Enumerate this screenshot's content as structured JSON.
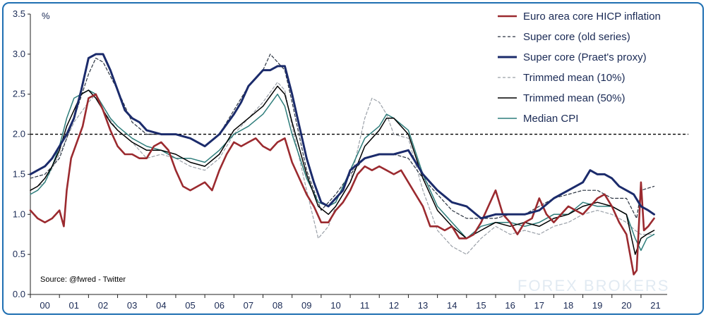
{
  "chart_data": {
    "type": "line",
    "title": "",
    "ylabel": "%",
    "ylim": [
      0.0,
      3.5
    ],
    "yticks": [
      "0.0",
      "0.5",
      "1.0",
      "1.5",
      "2.0",
      "2.5",
      "3.0",
      "3.5"
    ],
    "xlim": [
      2000.0,
      2021.9
    ],
    "xticks": [
      "00",
      "01",
      "02",
      "03",
      "04",
      "05",
      "06",
      "07",
      "08",
      "09",
      "10",
      "11",
      "12",
      "13",
      "14",
      "15",
      "16",
      "17",
      "18",
      "19",
      "20",
      "21"
    ],
    "reference_line": 2.0,
    "grid": false,
    "legend_position": "top-right",
    "source": "Source: @fwred - Twitter",
    "watermark": "FOREX BROKERS",
    "series": [
      {
        "name": "Euro area core HICP inflation",
        "color": "#9b2a2f",
        "style": "solid",
        "width": 2.6,
        "x": [
          2000.0,
          2000.25,
          2000.5,
          2000.75,
          2001.0,
          2001.15,
          2001.25,
          2001.4,
          2001.6,
          2001.8,
          2002.0,
          2002.25,
          2002.5,
          2002.75,
          2003.0,
          2003.25,
          2003.5,
          2003.75,
          2004.0,
          2004.25,
          2004.5,
          2004.75,
          2005.0,
          2005.25,
          2005.5,
          2005.75,
          2006.0,
          2006.25,
          2006.5,
          2006.75,
          2007.0,
          2007.25,
          2007.5,
          2007.75,
          2008.0,
          2008.25,
          2008.5,
          2008.75,
          2009.0,
          2009.25,
          2009.5,
          2009.75,
          2010.0,
          2010.25,
          2010.5,
          2010.75,
          2011.0,
          2011.25,
          2011.5,
          2011.75,
          2012.0,
          2012.25,
          2012.5,
          2012.75,
          2013.0,
          2013.25,
          2013.5,
          2013.75,
          2014.0,
          2014.25,
          2014.5,
          2014.75,
          2015.0,
          2015.25,
          2015.5,
          2015.75,
          2016.0,
          2016.25,
          2016.5,
          2016.75,
          2017.0,
          2017.25,
          2017.5,
          2017.75,
          2018.0,
          2018.25,
          2018.5,
          2018.75,
          2019.0,
          2019.25,
          2019.5,
          2019.75,
          2020.0,
          2020.25,
          2020.5,
          2020.75,
          2020.85,
          2021.0,
          2021.1,
          2021.25,
          2021.45
        ],
        "y": [
          1.05,
          0.95,
          0.9,
          0.95,
          1.05,
          0.85,
          1.3,
          1.7,
          1.9,
          2.1,
          2.45,
          2.5,
          2.3,
          2.05,
          1.85,
          1.75,
          1.75,
          1.7,
          1.7,
          1.85,
          1.9,
          1.8,
          1.55,
          1.35,
          1.3,
          1.35,
          1.4,
          1.3,
          1.55,
          1.75,
          1.9,
          1.85,
          1.9,
          1.95,
          1.85,
          1.8,
          1.9,
          1.95,
          1.65,
          1.45,
          1.25,
          1.1,
          0.9,
          0.9,
          1.05,
          1.15,
          1.3,
          1.5,
          1.6,
          1.55,
          1.6,
          1.55,
          1.5,
          1.55,
          1.4,
          1.25,
          1.1,
          0.85,
          0.85,
          0.8,
          0.85,
          0.7,
          0.7,
          0.75,
          0.9,
          1.1,
          1.3,
          1.0,
          0.9,
          0.75,
          0.9,
          0.95,
          1.2,
          1.0,
          0.9,
          1.0,
          1.1,
          1.05,
          1.0,
          1.1,
          1.2,
          1.25,
          1.1,
          0.9,
          0.75,
          0.25,
          0.3,
          1.4,
          0.8,
          0.85,
          0.95
        ]
      },
      {
        "name": "Super core (old series)",
        "color": "#2a3340",
        "style": "dashed",
        "width": 1.2,
        "x": [
          2000.0,
          2000.5,
          2001.0,
          2001.5,
          2002.0,
          2002.25,
          2002.5,
          2003.0,
          2003.5,
          2004.0,
          2004.5,
          2005.0,
          2005.5,
          2006.0,
          2006.5,
          2007.0,
          2007.5,
          2008.0,
          2008.25,
          2008.5,
          2008.75,
          2009.0,
          2009.5,
          2010.0,
          2010.5,
          2011.0,
          2011.5,
          2012.0,
          2012.5,
          2013.0,
          2013.5,
          2014.0,
          2014.5,
          2015.0,
          2015.5,
          2016.0,
          2016.5,
          2017.0,
          2017.5,
          2018.0,
          2018.5,
          2019.0,
          2019.5,
          2020.0,
          2020.5,
          2020.85,
          2021.0,
          2021.45
        ],
        "y": [
          1.45,
          1.5,
          1.7,
          2.2,
          2.75,
          2.95,
          2.9,
          2.55,
          2.15,
          2.0,
          2.0,
          2.0,
          1.95,
          1.85,
          2.0,
          2.3,
          2.6,
          2.8,
          3.0,
          2.9,
          2.8,
          2.4,
          1.55,
          1.05,
          1.25,
          1.5,
          1.7,
          1.75,
          1.75,
          1.7,
          1.45,
          1.25,
          1.05,
          0.95,
          0.95,
          0.95,
          1.0,
          1.0,
          1.1,
          1.2,
          1.25,
          1.3,
          1.3,
          1.2,
          1.2,
          0.95,
          1.3,
          1.35
        ]
      },
      {
        "name": "Super core (Praet's proxy)",
        "color": "#1b2b6b",
        "style": "solid",
        "width": 3.0,
        "x": [
          2000.0,
          2000.25,
          2000.5,
          2000.75,
          2001.0,
          2001.25,
          2001.5,
          2001.75,
          2002.0,
          2002.25,
          2002.5,
          2002.75,
          2003.0,
          2003.25,
          2003.5,
          2003.75,
          2004.0,
          2004.5,
          2005.0,
          2005.5,
          2006.0,
          2006.5,
          2007.0,
          2007.25,
          2007.5,
          2007.75,
          2008.0,
          2008.25,
          2008.5,
          2008.75,
          2009.0,
          2009.25,
          2009.5,
          2009.75,
          2010.0,
          2010.25,
          2010.5,
          2010.75,
          2011.0,
          2011.5,
          2012.0,
          2012.5,
          2013.0,
          2013.5,
          2014.0,
          2014.5,
          2015.0,
          2015.5,
          2016.0,
          2016.5,
          2017.0,
          2017.5,
          2018.0,
          2018.5,
          2019.0,
          2019.25,
          2019.5,
          2019.75,
          2020.0,
          2020.25,
          2020.5,
          2020.75,
          2021.0,
          2021.25,
          2021.45
        ],
        "y": [
          1.5,
          1.55,
          1.6,
          1.7,
          1.85,
          2.0,
          2.2,
          2.55,
          2.95,
          3.0,
          3.0,
          2.8,
          2.55,
          2.3,
          2.2,
          2.15,
          2.05,
          2.0,
          2.0,
          1.95,
          1.85,
          2.0,
          2.25,
          2.4,
          2.6,
          2.7,
          2.8,
          2.8,
          2.85,
          2.85,
          2.5,
          2.1,
          1.7,
          1.4,
          1.15,
          1.1,
          1.2,
          1.3,
          1.55,
          1.7,
          1.75,
          1.75,
          1.8,
          1.5,
          1.3,
          1.15,
          1.1,
          0.95,
          1.0,
          1.0,
          1.0,
          1.05,
          1.2,
          1.3,
          1.4,
          1.55,
          1.5,
          1.5,
          1.45,
          1.35,
          1.3,
          1.25,
          1.1,
          1.05,
          1.0
        ]
      },
      {
        "name": "Trimmed mean (10%)",
        "color": "#9aa0a8",
        "style": "dashed",
        "width": 1.2,
        "x": [
          2000.0,
          2000.5,
          2001.0,
          2001.5,
          2002.0,
          2002.25,
          2002.5,
          2003.0,
          2003.5,
          2004.0,
          2004.5,
          2005.0,
          2005.5,
          2006.0,
          2006.5,
          2007.0,
          2007.5,
          2008.0,
          2008.5,
          2008.75,
          2009.0,
          2009.5,
          2009.9,
          2010.25,
          2010.5,
          2011.0,
          2011.5,
          2011.75,
          2012.0,
          2012.25,
          2012.5,
          2013.0,
          2013.5,
          2014.0,
          2014.5,
          2015.0,
          2015.5,
          2016.0,
          2016.5,
          2017.0,
          2017.5,
          2018.0,
          2018.5,
          2019.0,
          2019.5,
          2020.0,
          2020.5,
          2020.8,
          2021.0,
          2021.45
        ],
        "y": [
          1.3,
          1.4,
          1.75,
          2.15,
          2.4,
          2.5,
          2.3,
          2.05,
          1.9,
          1.7,
          1.75,
          1.7,
          1.6,
          1.55,
          1.7,
          2.0,
          2.2,
          2.4,
          2.65,
          2.55,
          2.1,
          1.3,
          0.7,
          0.85,
          1.1,
          1.4,
          2.2,
          2.45,
          2.4,
          2.25,
          2.0,
          1.95,
          1.3,
          0.8,
          0.6,
          0.5,
          0.7,
          0.85,
          0.75,
          0.8,
          0.75,
          0.85,
          0.9,
          1.0,
          1.05,
          1.0,
          0.9,
          0.8,
          0.75,
          0.75
        ]
      },
      {
        "name": "Trimmed mean (50%)",
        "color": "#000000",
        "style": "solid",
        "width": 1.5,
        "x": [
          2000.0,
          2000.25,
          2000.5,
          2000.75,
          2001.0,
          2001.25,
          2001.5,
          2001.75,
          2002.0,
          2002.25,
          2002.5,
          2002.75,
          2003.0,
          2003.5,
          2004.0,
          2004.5,
          2005.0,
          2005.5,
          2006.0,
          2006.5,
          2007.0,
          2007.5,
          2008.0,
          2008.5,
          2008.75,
          2009.0,
          2009.5,
          2009.9,
          2010.25,
          2010.5,
          2011.0,
          2011.5,
          2012.0,
          2012.25,
          2012.5,
          2013.0,
          2013.5,
          2014.0,
          2014.5,
          2015.0,
          2015.5,
          2016.0,
          2016.5,
          2017.0,
          2017.5,
          2018.0,
          2018.5,
          2019.0,
          2019.5,
          2020.0,
          2020.5,
          2020.8,
          2021.0,
          2021.2,
          2021.45
        ],
        "y": [
          1.3,
          1.35,
          1.45,
          1.6,
          1.8,
          2.1,
          2.3,
          2.5,
          2.55,
          2.45,
          2.3,
          2.15,
          2.05,
          1.9,
          1.8,
          1.8,
          1.75,
          1.65,
          1.6,
          1.75,
          2.05,
          2.2,
          2.35,
          2.6,
          2.5,
          2.15,
          1.5,
          1.1,
          1.0,
          1.1,
          1.4,
          1.85,
          2.05,
          2.2,
          2.2,
          2.0,
          1.45,
          1.05,
          0.85,
          0.7,
          0.8,
          0.9,
          0.85,
          0.9,
          0.85,
          0.95,
          1.0,
          1.1,
          1.15,
          1.1,
          1.0,
          0.5,
          0.7,
          0.75,
          0.8
        ]
      },
      {
        "name": "Median CPI",
        "color": "#2e7d7b",
        "style": "solid",
        "width": 1.5,
        "x": [
          2000.0,
          2000.25,
          2000.5,
          2000.75,
          2001.0,
          2001.25,
          2001.5,
          2001.75,
          2002.0,
          2002.25,
          2002.5,
          2002.75,
          2003.0,
          2003.5,
          2004.0,
          2004.5,
          2005.0,
          2005.5,
          2006.0,
          2006.5,
          2007.0,
          2007.5,
          2008.0,
          2008.5,
          2008.75,
          2009.0,
          2009.5,
          2009.9,
          2010.25,
          2010.5,
          2011.0,
          2011.5,
          2012.0,
          2012.25,
          2012.5,
          2013.0,
          2013.5,
          2014.0,
          2014.5,
          2015.0,
          2015.5,
          2016.0,
          2016.5,
          2017.0,
          2017.5,
          2018.0,
          2018.5,
          2019.0,
          2019.5,
          2020.0,
          2020.5,
          2020.8,
          2021.0,
          2021.2,
          2021.45
        ],
        "y": [
          1.25,
          1.3,
          1.4,
          1.6,
          1.85,
          2.2,
          2.45,
          2.5,
          2.55,
          2.5,
          2.35,
          2.2,
          2.1,
          1.95,
          1.85,
          1.8,
          1.7,
          1.7,
          1.65,
          1.8,
          2.0,
          2.1,
          2.25,
          2.5,
          2.35,
          2.0,
          1.45,
          1.15,
          1.1,
          1.15,
          1.55,
          1.95,
          2.1,
          2.25,
          2.2,
          2.05,
          1.5,
          1.1,
          0.9,
          0.7,
          0.85,
          0.9,
          0.9,
          0.85,
          0.9,
          1.0,
          1.0,
          1.15,
          1.1,
          1.1,
          1.0,
          0.7,
          0.55,
          0.7,
          0.75
        ]
      }
    ]
  }
}
